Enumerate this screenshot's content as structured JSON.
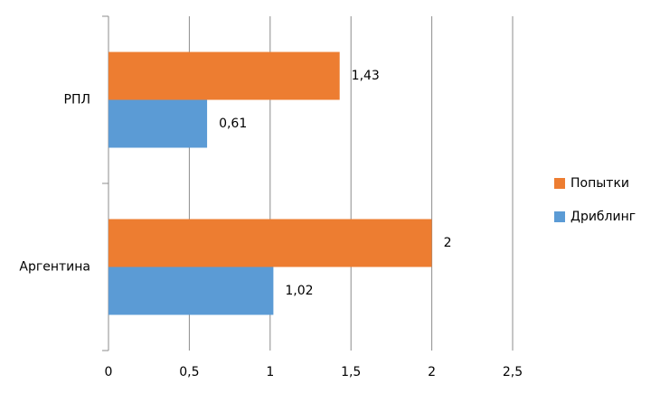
{
  "chart_data": {
    "type": "hbar",
    "categories": [
      "РПЛ",
      "Аргентина"
    ],
    "series": [
      {
        "name": "Попытки",
        "color": "#ed7d31",
        "values": [
          1.43,
          2
        ],
        "value_labels": [
          "1,43",
          "2"
        ]
      },
      {
        "name": "Дриблинг",
        "color": "#5b9bd5",
        "values": [
          0.61,
          1.02
        ],
        "value_labels": [
          "0,61",
          "1,02"
        ]
      }
    ],
    "xlim": [
      0,
      2.5
    ],
    "xticks": [
      0,
      {
        "value": 0.5,
        "label": "0,5"
      },
      1,
      {
        "value": 1.5,
        "label": "1,5"
      },
      2,
      {
        "value": 2.5,
        "label": "2,5"
      }
    ],
    "grid": true,
    "legend": "right"
  }
}
